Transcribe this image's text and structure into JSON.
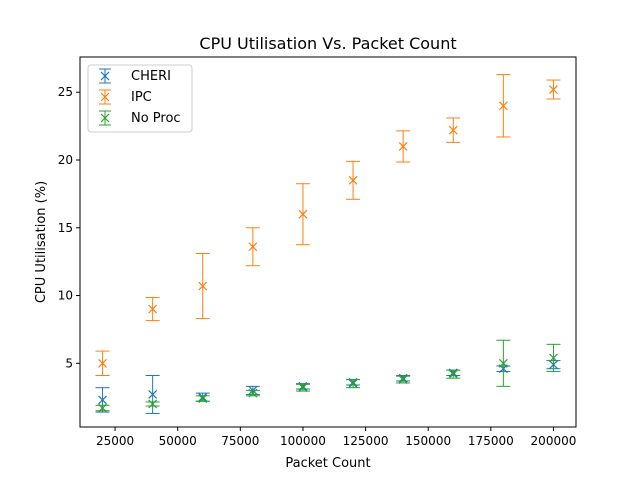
{
  "chart_data": {
    "type": "scatter",
    "title": "CPU Utilisation Vs. Packet Count",
    "xlabel": "Packet Count",
    "ylabel": "CPU Utilisation (%)",
    "xlim": [
      11000,
      209000
    ],
    "ylim": [
      0.3,
      27.6
    ],
    "xticks": [
      {
        "value": 25000,
        "label": "25000"
      },
      {
        "value": 50000,
        "label": "50000"
      },
      {
        "value": 75000,
        "label": "75000"
      },
      {
        "value": 100000,
        "label": "100000"
      },
      {
        "value": 125000,
        "label": "125000"
      },
      {
        "value": 150000,
        "label": "150000"
      },
      {
        "value": 175000,
        "label": "175000"
      },
      {
        "value": 200000,
        "label": "200000"
      }
    ],
    "yticks": [
      {
        "value": 5,
        "label": "5"
      },
      {
        "value": 10,
        "label": "10"
      },
      {
        "value": 15,
        "label": "15"
      },
      {
        "value": 20,
        "label": "20"
      },
      {
        "value": 25,
        "label": "25"
      }
    ],
    "grid": false,
    "legend_position": "top-left",
    "marker": "x",
    "error_bars": true,
    "x": [
      20000,
      40000,
      60000,
      80000,
      100000,
      120000,
      140000,
      160000,
      180000,
      200000
    ],
    "series": [
      {
        "name": "CHERI",
        "color": "#1f77b4",
        "values": [
          2.3,
          2.7,
          2.5,
          3.0,
          3.3,
          3.6,
          3.9,
          4.3,
          4.6,
          4.9
        ],
        "errors": [
          0.9,
          1.4,
          0.3,
          0.3,
          0.2,
          0.2,
          0.2,
          0.2,
          0.2,
          0.3
        ]
      },
      {
        "name": "IPC",
        "color": "#ff7f0e",
        "values": [
          5.0,
          9.0,
          10.7,
          13.6,
          16.0,
          18.5,
          21.0,
          22.2,
          24.0,
          25.2
        ],
        "errors": [
          0.9,
          0.85,
          2.4,
          1.4,
          2.25,
          1.4,
          1.15,
          0.9,
          2.3,
          0.7
        ]
      },
      {
        "name": "No Proc",
        "color": "#2ca02c",
        "values": [
          1.7,
          2.0,
          2.4,
          2.8,
          3.2,
          3.5,
          3.8,
          4.2,
          5.0,
          5.4
        ],
        "errors": [
          0.2,
          0.15,
          0.2,
          0.2,
          0.25,
          0.3,
          0.25,
          0.3,
          1.7,
          1.0
        ]
      }
    ]
  }
}
